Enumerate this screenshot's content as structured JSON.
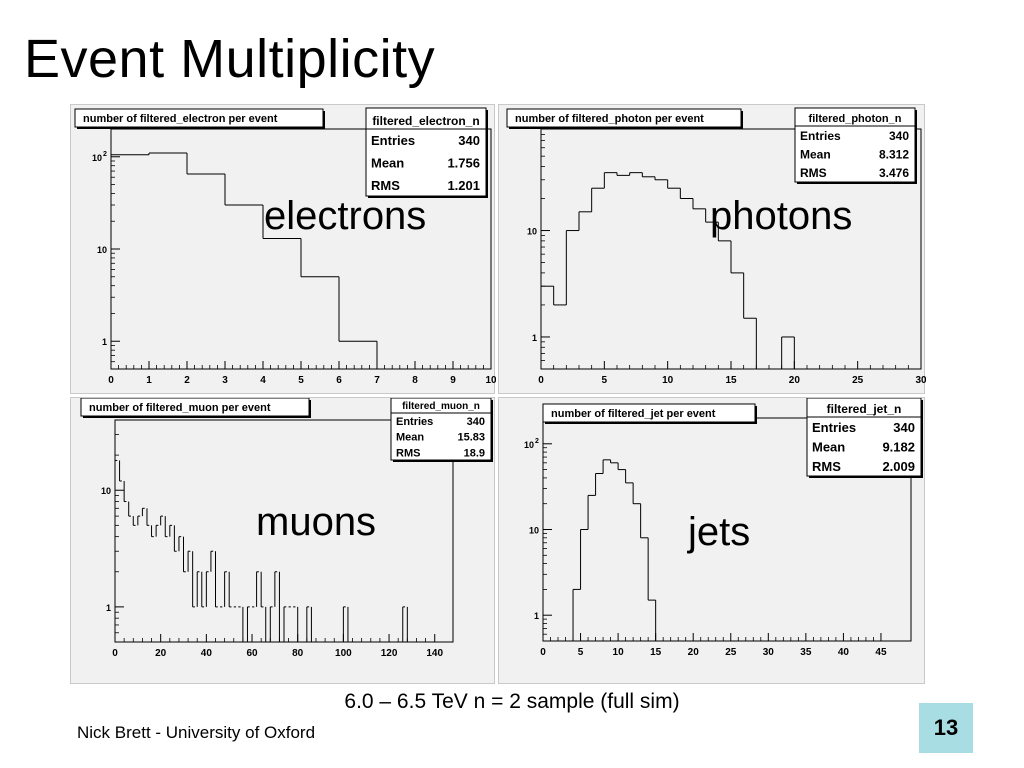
{
  "slide": {
    "title": "Event Multiplicity",
    "subtitle": "6.0 – 6.5 TeV n = 2 sample (full sim)",
    "footer": "Nick Brett - University of Oxford",
    "page_number": "13"
  },
  "colors": {
    "pad_bg": "#f1f1f1",
    "line": "#000000",
    "page_box": "#a8dde4"
  },
  "chart_data": [
    {
      "type": "bar",
      "title": "number of filtered_electron per event",
      "label": "electrons",
      "stats": {
        "name": "filtered_electron_n",
        "rows": [
          [
            "Entries",
            "340"
          ],
          [
            "Mean",
            "1.756"
          ],
          [
            "RMS",
            "1.201"
          ]
        ]
      },
      "x": [
        0,
        1,
        2,
        3,
        4,
        5,
        6,
        7
      ],
      "values": [
        105,
        110,
        65,
        30,
        13,
        5,
        1,
        0
      ],
      "bin_width": 1,
      "xlim": [
        0,
        10
      ],
      "ylim": [
        0.5,
        200
      ],
      "log_y": true,
      "xticks": [
        "0",
        "1",
        "2",
        "3",
        "4",
        "5",
        "6",
        "7",
        "8",
        "9",
        "10"
      ],
      "yticks": [
        {
          "v": 100,
          "label": "10",
          "exp": "2"
        },
        {
          "v": 10,
          "label": "10"
        },
        {
          "v": 1,
          "label": "1"
        }
      ]
    },
    {
      "type": "bar",
      "title": "number of filtered_photon per event",
      "label": "photons",
      "stats": {
        "name": "filtered_photon_n",
        "rows": [
          [
            "Entries",
            "340"
          ],
          [
            "Mean",
            "8.312"
          ],
          [
            "RMS",
            "3.476"
          ]
        ]
      },
      "x": [
        0,
        1,
        2,
        3,
        4,
        5,
        6,
        7,
        8,
        9,
        10,
        11,
        12,
        13,
        14,
        15,
        16,
        17,
        18,
        19,
        20
      ],
      "values": [
        3,
        2,
        10,
        15,
        25,
        35,
        33,
        35,
        32,
        30,
        25,
        20,
        16,
        12,
        8,
        4,
        1.5,
        0,
        0,
        1,
        0
      ],
      "bin_width": 1,
      "xlim": [
        0,
        30
      ],
      "ylim": [
        0.5,
        90
      ],
      "log_y": true,
      "xticks": [
        "0",
        "5",
        "10",
        "15",
        "20",
        "25",
        "30"
      ],
      "yticks": [
        {
          "v": 10,
          "label": "10"
        },
        {
          "v": 1,
          "label": "1"
        }
      ]
    },
    {
      "type": "bar",
      "title": "number of filtered_muon per event",
      "label": "muons",
      "stats": {
        "name": "filtered_muon_n",
        "rows": [
          [
            "Entries",
            "340"
          ],
          [
            "Mean",
            "15.83"
          ],
          [
            "RMS",
            "18.9"
          ]
        ]
      },
      "x": [
        0,
        2,
        4,
        6,
        8,
        10,
        12,
        14,
        16,
        18,
        20,
        22,
        24,
        26,
        28,
        30,
        32,
        34,
        36,
        38,
        40,
        42,
        44,
        46,
        48,
        50,
        52,
        54,
        56,
        58,
        60,
        62,
        64,
        66,
        68,
        70,
        72,
        74,
        76,
        78,
        80,
        82,
        84,
        86,
        88,
        90,
        92,
        94,
        96,
        98,
        100,
        102,
        104,
        106,
        108,
        110,
        112,
        114,
        116,
        118,
        120,
        122,
        124,
        126,
        128,
        130,
        132,
        134,
        136,
        138,
        140,
        142,
        144,
        146,
        148,
        150
      ],
      "values": [
        18,
        12,
        8,
        6,
        5,
        6,
        7,
        5,
        4,
        5,
        6,
        4,
        5,
        3,
        4,
        2,
        3,
        1,
        2,
        1,
        2,
        3,
        1,
        1,
        2,
        1,
        1,
        1,
        0,
        1,
        1,
        2,
        1,
        0,
        1,
        2,
        0,
        1,
        1,
        1,
        0,
        0,
        1,
        0,
        0,
        0,
        0,
        0,
        0,
        0,
        1,
        0,
        0,
        0,
        0,
        0,
        0,
        0,
        0,
        0,
        0,
        0,
        0,
        1,
        0,
        0,
        0,
        0,
        0,
        0,
        0,
        0,
        0,
        0,
        0,
        0
      ],
      "bin_width": 1,
      "xlim": [
        0,
        148
      ],
      "ylim": [
        0.5,
        40
      ],
      "log_y": true,
      "xticks": [
        "0",
        "20",
        "40",
        "60",
        "80",
        "100",
        "120",
        "140"
      ],
      "yticks": [
        {
          "v": 10,
          "label": "10"
        },
        {
          "v": 1,
          "label": "1"
        }
      ]
    },
    {
      "type": "bar",
      "title": "number of filtered_jet per event",
      "label": "jets",
      "stats": {
        "name": "filtered_jet_n",
        "rows": [
          [
            "Entries",
            "340"
          ],
          [
            "Mean",
            "9.182"
          ],
          [
            "RMS",
            "2.009"
          ]
        ]
      },
      "x": [
        4,
        5,
        6,
        7,
        8,
        9,
        10,
        11,
        12,
        13,
        14,
        15
      ],
      "values": [
        2,
        10,
        25,
        45,
        65,
        60,
        50,
        35,
        20,
        8,
        1.5,
        0
      ],
      "bin_width": 1,
      "xlim": [
        0,
        49
      ],
      "ylim": [
        0.5,
        200
      ],
      "log_y": true,
      "xticks": [
        "0",
        "5",
        "10",
        "15",
        "20",
        "25",
        "30",
        "35",
        "40",
        "45"
      ],
      "yticks": [
        {
          "v": 100,
          "label": "10",
          "exp": "2"
        },
        {
          "v": 10,
          "label": "10"
        },
        {
          "v": 1,
          "label": "1"
        }
      ]
    }
  ]
}
